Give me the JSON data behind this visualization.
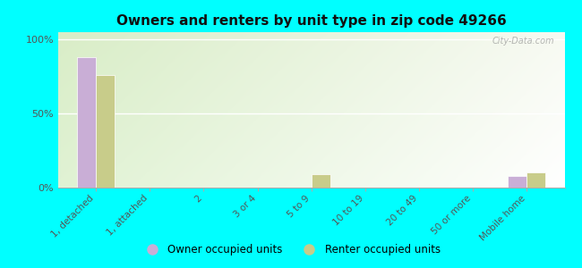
{
  "title": "Owners and renters by unit type in zip code 49266",
  "categories": [
    "1, detached",
    "1, attached",
    "2",
    "3 or 4",
    "5 to 9",
    "10 to 19",
    "20 to 49",
    "50 or more",
    "Mobile home"
  ],
  "owner_values": [
    88,
    0,
    0,
    0,
    0,
    0,
    0,
    0,
    8
  ],
  "renter_values": [
    76,
    0,
    0,
    0,
    9,
    0,
    0,
    0,
    10
  ],
  "owner_color": "#c9aed6",
  "renter_color": "#c8cc8a",
  "background_color": "#00ffff",
  "yticks": [
    0,
    50,
    100
  ],
  "ylim": [
    0,
    105
  ],
  "ylabel_labels": [
    "0%",
    "50%",
    "100%"
  ],
  "bar_width": 0.35,
  "watermark": "City-Data.com",
  "legend_owner": "Owner occupied units",
  "legend_renter": "Renter occupied units"
}
